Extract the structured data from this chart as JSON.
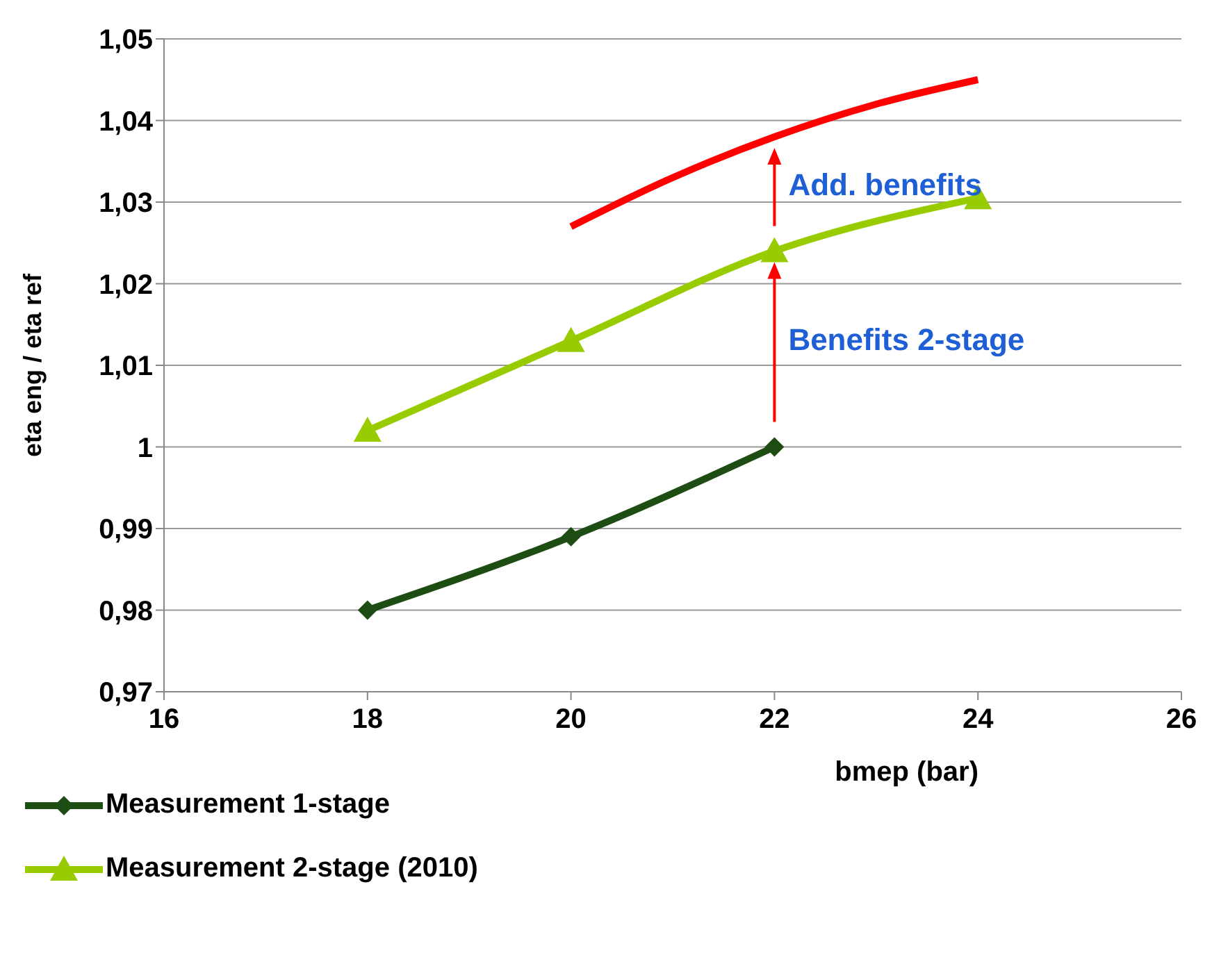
{
  "chart_data": {
    "type": "line",
    "xlabel": "bmep (bar)",
    "ylabel": "eta eng / eta  ref",
    "xlim": [
      16,
      26
    ],
    "xticks": [
      16,
      18,
      20,
      22,
      24,
      26
    ],
    "ylim": [
      0.97,
      1.05
    ],
    "yticks": [
      {
        "value": 0.97,
        "label": "0,97"
      },
      {
        "value": 0.98,
        "label": "0,98"
      },
      {
        "value": 0.99,
        "label": "0,99"
      },
      1,
      {
        "value": 1.01,
        "label": "1,01"
      },
      {
        "value": 1.02,
        "label": "1,02"
      },
      {
        "value": 1.03,
        "label": "1,03"
      },
      {
        "value": 1.04,
        "label": "1,04"
      },
      {
        "value": 1.05,
        "label": "1,05"
      }
    ],
    "grid": "y",
    "legend": "bottom",
    "line_style": "solid",
    "series": [
      {
        "name": "Measurement 1-stage",
        "color": "#1e4d14",
        "marker": "diamond",
        "x": [
          18,
          20,
          22
        ],
        "values": [
          0.98,
          0.989,
          1.0
        ]
      },
      {
        "name": "Measurement 2-stage (2010)",
        "color": "#99cc00",
        "marker": "triangle",
        "x": [
          18,
          20,
          22,
          24
        ],
        "values": [
          1.002,
          1.013,
          1.024,
          1.0305
        ]
      },
      {
        "color": "#ff0000",
        "marker": "none",
        "x": [
          20,
          21,
          22,
          23,
          24
        ],
        "values": [
          1.027,
          1.033,
          1.038,
          1.042,
          1.045
        ]
      }
    ],
    "annotations": [
      {
        "text": "Benefits 2-stage",
        "x": 22,
        "y": 1.024
      },
      {
        "text": "Add. benefits",
        "x": 22,
        "y": 1.038
      }
    ]
  }
}
